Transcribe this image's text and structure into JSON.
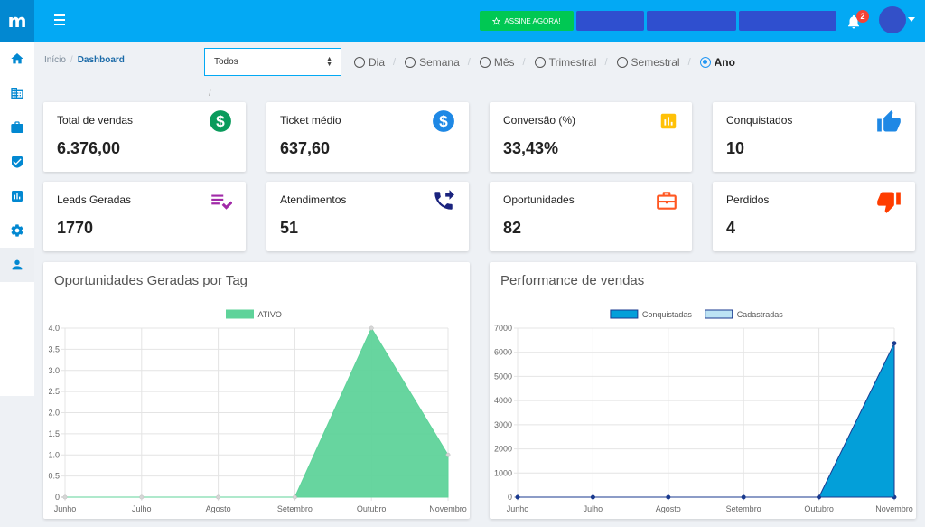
{
  "app": {
    "logo": "m"
  },
  "header": {
    "cta_label": "ASSINE AGORA!",
    "notification_count": "2"
  },
  "colors": {
    "topbar": "#03a9f4",
    "cta": "#00c853",
    "accent": "#2196f3",
    "dark_button": "#2f4fcf",
    "badge": "#f44336"
  },
  "sidebar": {
    "items": [
      {
        "icon": "home-icon"
      },
      {
        "icon": "building-icon"
      },
      {
        "icon": "briefcase-icon"
      },
      {
        "icon": "shield-check-icon"
      },
      {
        "icon": "bar-chart-icon"
      },
      {
        "icon": "gear-icon"
      },
      {
        "icon": "user-icon"
      }
    ]
  },
  "breadcrumb": {
    "home": "Início",
    "current": "Dashboard"
  },
  "filter": {
    "selected": "Todos",
    "periods": [
      "Dia",
      "Semana",
      "Mês",
      "Trimestral",
      "Semestral",
      "Ano"
    ],
    "selected_period": "Ano"
  },
  "cards": [
    {
      "title": "Total de vendas",
      "value": "6.376,00",
      "icon": "dollar-circle-icon",
      "color": "#0a9b5c"
    },
    {
      "title": "Ticket médio",
      "value": "637,60",
      "icon": "dollar-circle-icon",
      "color": "#1e88e5"
    },
    {
      "title": "Conversão (%)",
      "value": "33,43%",
      "icon": "bar-chart-icon",
      "color": "#ffc107"
    },
    {
      "title": "Conquistados",
      "value": "10",
      "icon": "thumbs-up-icon",
      "color": "#1e88e5"
    },
    {
      "title": "Leads Geradas",
      "value": "1770",
      "icon": "playlist-check-icon",
      "color": "#a12aa8"
    },
    {
      "title": "Atendimentos",
      "value": "51",
      "icon": "phone-forward-icon",
      "color": "#1a237e"
    },
    {
      "title": "Oportunidades",
      "value": "82",
      "icon": "briefcase-icon",
      "color": "#ff5722"
    },
    {
      "title": "Perdidos",
      "value": "4",
      "icon": "thumbs-down-icon",
      "color": "#ff3d00"
    }
  ],
  "chart_data": [
    {
      "type": "area",
      "title": "Oportunidades Geradas por Tag",
      "categories": [
        "Junho",
        "Julho",
        "Agosto",
        "Setembro",
        "Outubro",
        "Novembro"
      ],
      "series": [
        {
          "name": "ATIVO",
          "values": [
            0,
            0,
            0,
            0,
            4,
            1
          ],
          "color": "#5fd39a"
        }
      ],
      "ylim": [
        0,
        4
      ],
      "yticks": [
        "0",
        "0.5",
        "1.0",
        "1.5",
        "2.0",
        "2.5",
        "3.0",
        "3.5",
        "4.0"
      ],
      "legend": "top",
      "grid": true
    },
    {
      "type": "area",
      "title": "Performance de vendas",
      "categories": [
        "Junho",
        "Julho",
        "Agosto",
        "Setembro",
        "Outubro",
        "Novembro"
      ],
      "series": [
        {
          "name": "Conquistadas",
          "values": [
            0,
            0,
            0,
            0,
            0,
            6376
          ],
          "color": "#039fd9"
        },
        {
          "name": "Cadastradas",
          "values": [
            0,
            0,
            0,
            0,
            0,
            0
          ],
          "color": "#bde3f4"
        }
      ],
      "ylim": [
        0,
        7000
      ],
      "yticks": [
        "0",
        "1000",
        "2000",
        "3000",
        "4000",
        "5000",
        "6000",
        "7000"
      ],
      "legend": "top",
      "grid": true
    }
  ]
}
